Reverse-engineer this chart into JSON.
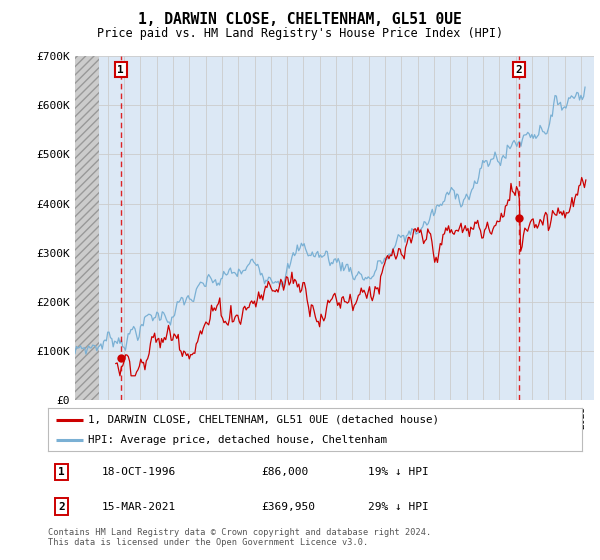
{
  "title": "1, DARWIN CLOSE, CHELTENHAM, GL51 0UE",
  "subtitle": "Price paid vs. HM Land Registry's House Price Index (HPI)",
  "ylim": [
    0,
    700000
  ],
  "yticks": [
    0,
    100000,
    200000,
    300000,
    400000,
    500000,
    600000,
    700000
  ],
  "ytick_labels": [
    "£0",
    "£100K",
    "£200K",
    "£300K",
    "£400K",
    "£500K",
    "£600K",
    "£700K"
  ],
  "xlim_start": 1994.0,
  "xlim_end": 2025.8,
  "hatch_end": 1995.5,
  "grid_color": "#cccccc",
  "bg_color": "#dce8f5",
  "transaction1_date": 1996.8,
  "transaction1_price": 86000,
  "transaction1_label": "1",
  "transaction2_date": 2021.21,
  "transaction2_price": 369950,
  "transaction2_label": "2",
  "red_line_color": "#cc0000",
  "blue_line_color": "#7ab0d4",
  "legend_line1": "1, DARWIN CLOSE, CHELTENHAM, GL51 0UE (detached house)",
  "legend_line2": "HPI: Average price, detached house, Cheltenham",
  "annot1_num": "1",
  "annot1_date": "18-OCT-1996",
  "annot1_price": "£86,000",
  "annot1_hpi": "19% ↓ HPI",
  "annot2_num": "2",
  "annot2_date": "15-MAR-2021",
  "annot2_price": "£369,950",
  "annot2_hpi": "29% ↓ HPI",
  "footer": "Contains HM Land Registry data © Crown copyright and database right 2024.\nThis data is licensed under the Open Government Licence v3.0."
}
